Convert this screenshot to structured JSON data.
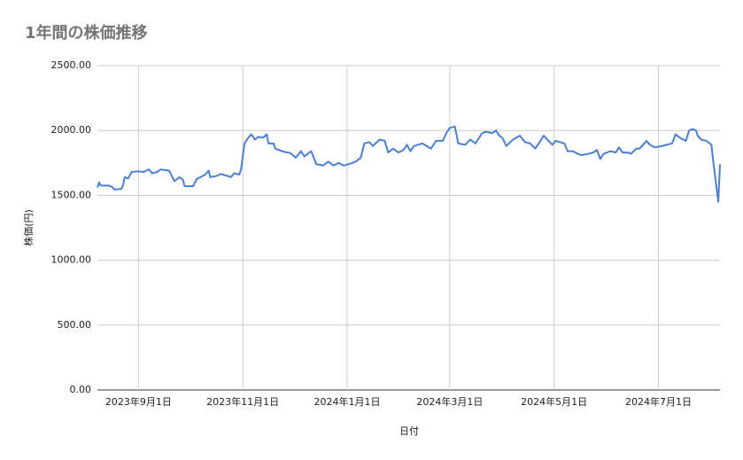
{
  "chart_data": {
    "type": "line",
    "title": "1年間の株価推移",
    "x_label": "日付",
    "y_label": "株価(円)",
    "color": "#4a7fd4",
    "grid": true,
    "xlim": [
      "2023-08-08",
      "2024-08-06"
    ],
    "xticks": [
      {
        "value": "2023-09-01",
        "label": "2023年9月1日"
      },
      {
        "value": "2023-11-01",
        "label": "2023年11月1日"
      },
      {
        "value": "2024-01-01",
        "label": "2024年1月1日"
      },
      {
        "value": "2024-03-01",
        "label": "2024年3月1日"
      },
      {
        "value": "2024-05-01",
        "label": "2024年5月1日"
      },
      {
        "value": "2024-07-01",
        "label": "2024年7月1日"
      }
    ],
    "ylim": [
      0,
      2500
    ],
    "yticks": [
      {
        "value": 0,
        "label": "0.00"
      },
      {
        "value": 500,
        "label": "500.00"
      },
      {
        "value": 1000,
        "label": "1000.00"
      },
      {
        "value": 1500,
        "label": "1500.00"
      },
      {
        "value": 2000,
        "label": "2000.00"
      },
      {
        "value": 2500,
        "label": "2500.00"
      }
    ],
    "x": [
      "2023-08-08",
      "2023-08-09",
      "2023-08-10",
      "2023-08-15",
      "2023-08-17",
      "2023-08-18",
      "2023-08-22",
      "2023-08-23",
      "2023-08-24",
      "2023-08-26",
      "2023-08-28",
      "2023-09-01",
      "2023-09-04",
      "2023-09-07",
      "2023-09-09",
      "2023-09-12",
      "2023-09-14",
      "2023-09-19",
      "2023-09-22",
      "2023-09-25",
      "2023-09-27",
      "2023-09-28",
      "2023-10-03",
      "2023-10-05",
      "2023-10-10",
      "2023-10-12",
      "2023-10-13",
      "2023-10-17",
      "2023-10-19",
      "2023-10-23",
      "2023-10-25",
      "2023-10-27",
      "2023-10-30",
      "2023-10-31",
      "2023-11-02",
      "2023-11-04",
      "2023-11-06",
      "2023-11-08",
      "2023-11-10",
      "2023-11-13",
      "2023-11-15",
      "2023-11-16",
      "2023-11-19",
      "2023-11-20",
      "2023-11-24",
      "2023-11-29",
      "2023-12-02",
      "2023-12-05",
      "2023-12-07",
      "2023-12-11",
      "2023-12-14",
      "2023-12-18",
      "2023-12-21",
      "2023-12-24",
      "2023-12-27",
      "2023-12-30",
      "2024-01-03",
      "2024-01-06",
      "2024-01-09",
      "2024-01-11",
      "2024-01-14",
      "2024-01-16",
      "2024-01-20",
      "2024-01-23",
      "2024-01-25",
      "2024-01-28",
      "2024-01-31",
      "2024-02-03",
      "2024-02-05",
      "2024-02-07",
      "2024-02-09",
      "2024-02-14",
      "2024-02-19",
      "2024-02-22",
      "2024-02-26",
      "2024-02-28",
      "2024-03-01",
      "2024-03-04",
      "2024-03-06",
      "2024-03-10",
      "2024-03-13",
      "2024-03-16",
      "2024-03-20",
      "2024-03-22",
      "2024-03-26",
      "2024-03-28",
      "2024-03-30",
      "2024-04-01",
      "2024-04-03",
      "2024-04-07",
      "2024-04-11",
      "2024-04-14",
      "2024-04-17",
      "2024-04-20",
      "2024-04-23",
      "2024-04-25",
      "2024-04-27",
      "2024-04-30",
      "2024-05-02",
      "2024-05-07",
      "2024-05-09",
      "2024-05-12",
      "2024-05-15",
      "2024-05-17",
      "2024-05-21",
      "2024-05-24",
      "2024-05-26",
      "2024-05-28",
      "2024-05-30",
      "2024-06-03",
      "2024-06-06",
      "2024-06-08",
      "2024-06-10",
      "2024-06-13",
      "2024-06-15",
      "2024-06-18",
      "2024-06-20",
      "2024-06-24",
      "2024-06-26",
      "2024-06-29",
      "2024-07-03",
      "2024-07-06",
      "2024-07-09",
      "2024-07-11",
      "2024-07-14",
      "2024-07-17",
      "2024-07-19",
      "2024-07-21",
      "2024-07-23",
      "2024-07-24",
      "2024-07-26",
      "2024-07-29",
      "2024-08-01",
      "2024-08-02",
      "2024-08-05",
      "2024-08-06"
    ],
    "values": [
      1560,
      1600,
      1575,
      1575,
      1560,
      1545,
      1550,
      1580,
      1640,
      1630,
      1680,
      1685,
      1680,
      1700,
      1670,
      1680,
      1700,
      1690,
      1610,
      1640,
      1620,
      1570,
      1570,
      1625,
      1660,
      1690,
      1640,
      1650,
      1665,
      1650,
      1640,
      1670,
      1660,
      1700,
      1900,
      1940,
      1970,
      1930,
      1950,
      1945,
      1970,
      1900,
      1900,
      1860,
      1840,
      1825,
      1790,
      1840,
      1800,
      1840,
      1740,
      1730,
      1760,
      1730,
      1750,
      1730,
      1745,
      1760,
      1790,
      1900,
      1910,
      1880,
      1930,
      1920,
      1830,
      1860,
      1830,
      1850,
      1890,
      1840,
      1880,
      1900,
      1860,
      1920,
      1920,
      1980,
      2020,
      2030,
      1900,
      1890,
      1930,
      1900,
      1980,
      1990,
      1980,
      2000,
      1960,
      1940,
      1880,
      1930,
      1960,
      1910,
      1900,
      1860,
      1920,
      1960,
      1930,
      1890,
      1920,
      1900,
      1840,
      1840,
      1820,
      1810,
      1820,
      1830,
      1850,
      1780,
      1820,
      1840,
      1830,
      1870,
      1830,
      1830,
      1820,
      1860,
      1860,
      1920,
      1890,
      1870,
      1880,
      1890,
      1900,
      1970,
      1940,
      1920,
      2000,
      2010,
      2000,
      1960,
      1930,
      1920,
      1890,
      1770,
      1450,
      1740
    ]
  }
}
